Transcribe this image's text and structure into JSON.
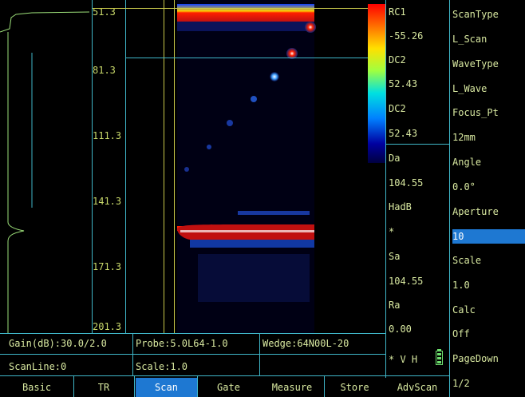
{
  "depth_axis": {
    "ticks": [
      "51.3",
      "81.3",
      "111.3",
      "141.3",
      "171.3",
      "201.3"
    ]
  },
  "readouts": [
    {
      "label": "RC1"
    },
    {
      "label": "-55.26"
    },
    {
      "label": "DC2"
    },
    {
      "label": "52.43"
    },
    {
      "label": "DC2"
    },
    {
      "label": "52.43"
    },
    {
      "label": "Da"
    },
    {
      "label": "104.55"
    },
    {
      "label": "HadB"
    },
    {
      "label": "*"
    },
    {
      "label": "Sa"
    },
    {
      "label": "104.55"
    },
    {
      "label": "Ra"
    },
    {
      "label": "0.00"
    }
  ],
  "indicator": {
    "text": "* V H"
  },
  "menu": [
    {
      "label": "ScanType"
    },
    {
      "label": "L_Scan"
    },
    {
      "label": "WaveType"
    },
    {
      "label": "L_Wave"
    },
    {
      "label": "Focus_Pt"
    },
    {
      "label": "12mm"
    },
    {
      "label": "Angle"
    },
    {
      "label": "0.0°"
    },
    {
      "label": "Aperture"
    },
    {
      "label": "10",
      "selected": true
    },
    {
      "label": "Scale"
    },
    {
      "label": "1.0"
    },
    {
      "label": "Calc"
    },
    {
      "label": "Off"
    },
    {
      "label": "PageDown"
    },
    {
      "label": "1/2"
    }
  ],
  "status": {
    "gain": "Gain(dB):30.0/2.0",
    "probe": "Probe:5.0L64-1.0",
    "wedge": "Wedge:64N00L-20",
    "scanline": "ScanLine:0",
    "scale": "Scale:1.0"
  },
  "tabs": [
    {
      "label": "Basic"
    },
    {
      "label": "TR"
    },
    {
      "label": "Scan",
      "active": true
    },
    {
      "label": "Gate"
    },
    {
      "label": "Measure"
    },
    {
      "label": "Store"
    },
    {
      "label": "AdvScan"
    }
  ],
  "colors": {
    "accent": "#1e78d2",
    "grid": "#3fb6c8",
    "cursor": "#c8c84a"
  }
}
